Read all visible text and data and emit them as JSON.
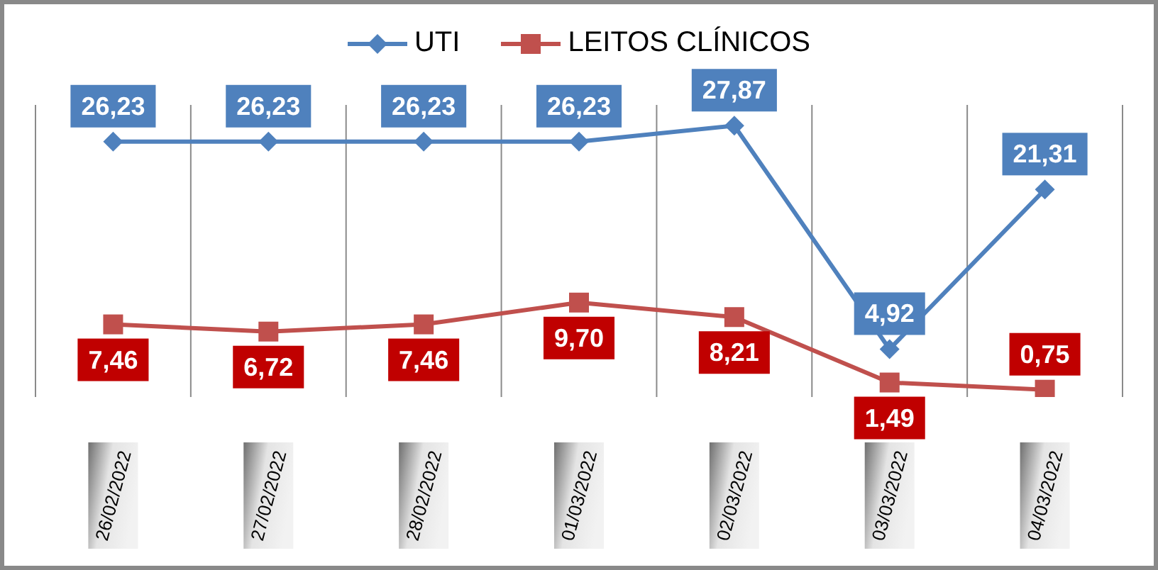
{
  "chart_data": {
    "type": "line",
    "categories": [
      "26/02/2022",
      "27/02/2022",
      "28/02/2022",
      "01/03/2022",
      "02/03/2022",
      "03/03/2022",
      "04/03/2022"
    ],
    "series": [
      {
        "name": "UTI",
        "color": "#4f81bd",
        "marker": "diamond",
        "values": [
          26.23,
          26.23,
          26.23,
          26.23,
          27.87,
          4.92,
          21.31
        ],
        "value_labels": [
          "26,23",
          "26,23",
          "26,23",
          "26,23",
          "27,87",
          "4,92",
          "21,31"
        ]
      },
      {
        "name": "LEITOS CLÍNICOS",
        "color": "#c0504d",
        "marker": "square",
        "values": [
          7.46,
          6.72,
          7.46,
          9.7,
          8.21,
          1.49,
          0.75
        ],
        "value_labels": [
          "7,46",
          "6,72",
          "7,46",
          "9,70",
          "8,21",
          "1,49",
          "0,75"
        ]
      }
    ],
    "ylim": [
      0,
      30
    ],
    "tick_labels": "x",
    "grid": "x",
    "legend": "top",
    "line_style": "solid"
  }
}
